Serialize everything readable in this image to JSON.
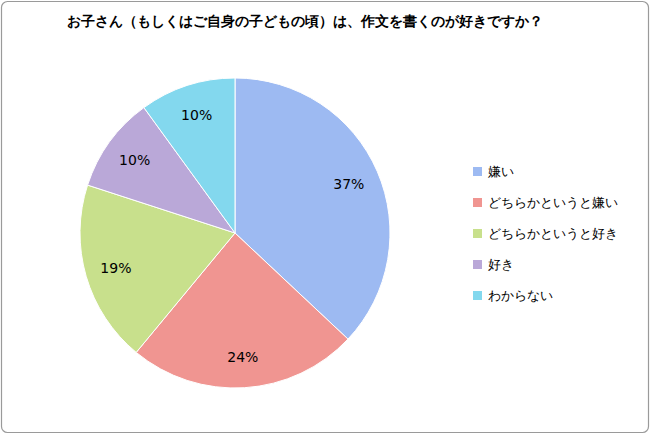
{
  "chart_data": {
    "type": "pie",
    "title": "お子さん（もしくはご自身の子どもの頃）は、作文を書くのが好きですか？",
    "categories": [
      "嫌い",
      "どちらかというと嫌い",
      "どちらかというと好き",
      "好き",
      "わからない"
    ],
    "values": [
      37,
      24,
      19,
      10,
      10
    ],
    "value_labels": [
      "37%",
      "24%",
      "19%",
      "10%",
      "10%"
    ],
    "colors": [
      "#9dbaf2",
      "#f09591",
      "#c8e08c",
      "#baa8d8",
      "#83d8ee"
    ],
    "data_labels": true,
    "legend": "right"
  }
}
